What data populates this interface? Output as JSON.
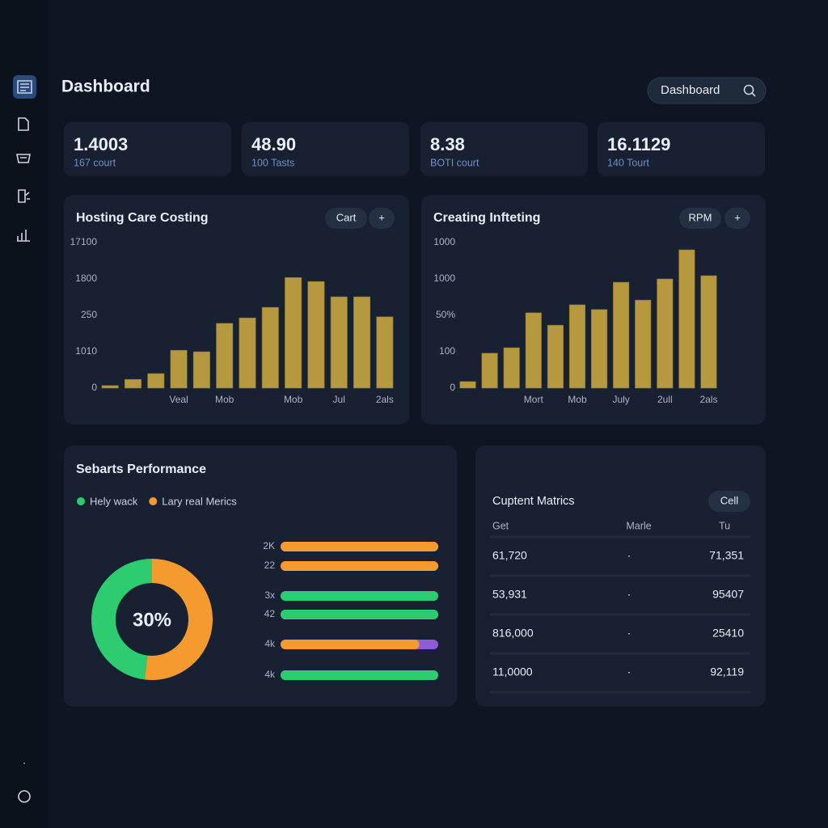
{
  "header": {
    "title": "Dashboard",
    "search": "Dashboard"
  },
  "stats": [
    {
      "value": "1.4003",
      "label": "167 court"
    },
    {
      "value": "48.90",
      "label": "100 Tasts"
    },
    {
      "value": "8.38",
      "label": "BOTI court"
    },
    {
      "value": "16.1129",
      "label": "140 Tourt"
    }
  ],
  "chart_data": [
    {
      "type": "bar",
      "title": "Hosting Care Costing",
      "button": "Cart",
      "add_button": "+",
      "categories": [
        null,
        null,
        null,
        "Veal",
        null,
        "Mob",
        null,
        null,
        "Mob",
        null,
        "Jul",
        null,
        "2als"
      ],
      "values": [
        0.07,
        0.24,
        0.4,
        1.04,
        1.0,
        1.78,
        1.93,
        2.22,
        3.04,
        2.93,
        2.51,
        2.51,
        1.96
      ],
      "color": "#b6993f",
      "ylim": [
        0,
        4
      ],
      "yticks": [
        {
          "value": 0,
          "label": "0"
        },
        {
          "value": 1,
          "label": "1010"
        },
        {
          "value": 2,
          "label": "250"
        },
        {
          "value": 3,
          "label": "1800"
        },
        {
          "value": 4,
          "label": "17100"
        }
      ]
    },
    {
      "type": "bar",
      "title": "Creating Infteting",
      "button": "RPM",
      "add_button": "+",
      "categories": [
        null,
        null,
        null,
        "Mort",
        null,
        "Mob",
        null,
        "July",
        null,
        "2ull",
        null,
        "2als"
      ],
      "values": [
        0.18,
        0.96,
        1.11,
        2.07,
        1.73,
        2.29,
        2.16,
        2.91,
        2.42,
        3.0,
        3.8,
        3.09
      ],
      "color": "#b6993f",
      "ylim": [
        0,
        4
      ],
      "yticks": [
        {
          "value": 0,
          "label": "0"
        },
        {
          "value": 1,
          "label": "100"
        },
        {
          "value": 2,
          "label": "50%"
        },
        {
          "value": 3,
          "label": "1000"
        },
        {
          "value": 4,
          "label": "1000"
        }
      ]
    },
    {
      "type": "pie",
      "title": "Sebarts Performance",
      "center_label": "30%",
      "categories": [
        "Hely wack",
        "Lary real Merics"
      ],
      "values": [
        48,
        52
      ],
      "colors": [
        "#2ecc71",
        "#f59a2f"
      ]
    },
    {
      "type": "progress",
      "categories": [
        "2K",
        "22",
        "3x",
        "42",
        "4k",
        "4k"
      ],
      "values": [
        100,
        100,
        100,
        100,
        88,
        100
      ],
      "colors": [
        "#f59a2f",
        "#f59a2f",
        "#2ecc71",
        "#2ecc71",
        "#f59a2f",
        "#2ecc71"
      ],
      "track_color": "#8e5bd6",
      "xlim": [
        0,
        100
      ]
    }
  ],
  "table": {
    "title": "Cuptent Matrics",
    "button": "Cell",
    "columns": [
      "Get",
      "Marle",
      "Tu"
    ],
    "rows": [
      [
        "61,720",
        "·",
        "71,351"
      ],
      [
        "53,931",
        "·",
        "95407"
      ],
      [
        "816,000",
        "·",
        "25410"
      ],
      [
        "11,0000",
        "·",
        "92,119"
      ]
    ]
  }
}
